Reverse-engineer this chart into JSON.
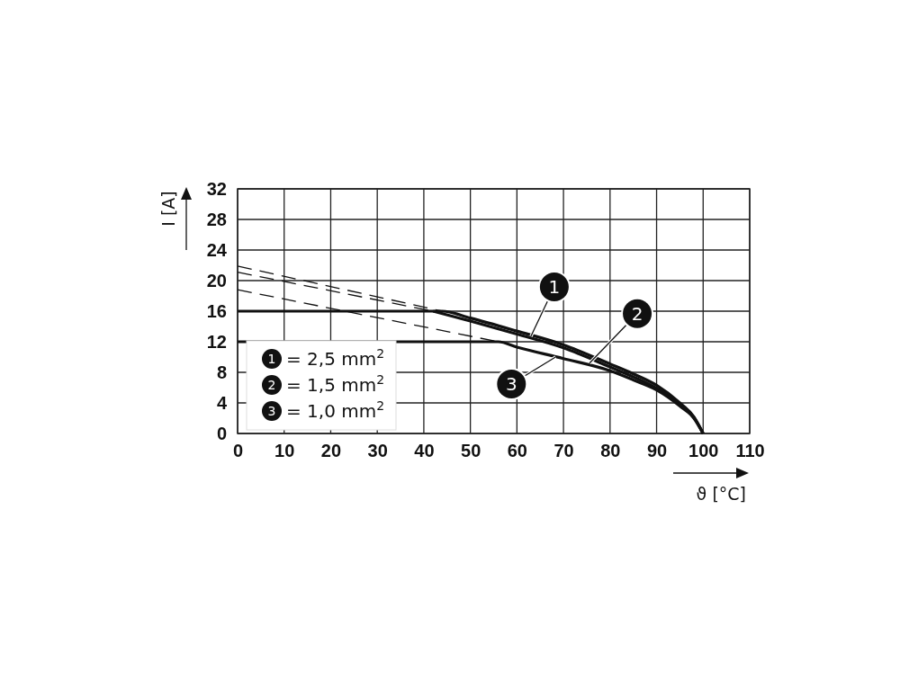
{
  "chart_data": {
    "type": "line",
    "xlabel": "ϑ [°C]",
    "ylabel": "I [A]",
    "xlim": [
      0,
      110
    ],
    "xticks": [
      0,
      10,
      20,
      30,
      40,
      50,
      60,
      70,
      80,
      90,
      100,
      110
    ],
    "ylim": [
      0,
      32
    ],
    "yticks": [
      0,
      4,
      8,
      12,
      16,
      20,
      24,
      28,
      32
    ],
    "grid": true,
    "legend": "bottom left",
    "marker": "none",
    "line_style": "solid",
    "series": [
      {
        "name": "= 2,5 mm$^{2}$",
        "color": "#111111",
        "x": [
          0,
          44,
          50,
          60,
          70,
          80,
          85,
          90,
          95,
          98,
          100
        ],
        "values": [
          16,
          16,
          15.1,
          13.4,
          11.6,
          9.1,
          7.8,
          6.3,
          4,
          2.2,
          0
        ]
      },
      {
        "name": "= 1,5 mm$^{2}$",
        "color": "#111111",
        "x": [
          42,
          50,
          60,
          70,
          80,
          85,
          90,
          95,
          98,
          100
        ],
        "values": [
          16,
          14.7,
          13,
          11.2,
          8.7,
          7.4,
          5.9,
          3.8,
          2.1,
          0
        ]
      },
      {
        "name": "= 1,0 mm$^{2}$",
        "color": "#111111",
        "x": [
          0,
          56,
          60,
          70,
          80,
          85,
          90,
          95,
          98,
          100
        ],
        "values": [
          12,
          12,
          11.3,
          9.8,
          8.2,
          7,
          5.7,
          3.6,
          2,
          0
        ]
      },
      {
        "color": "#111111",
        "line_style": "dashed",
        "x": [
          0,
          44
        ],
        "values": [
          21.9,
          16
        ]
      },
      {
        "color": "#111111",
        "line_style": "dashed",
        "x": [
          0,
          42
        ],
        "values": [
          21.1,
          16
        ]
      },
      {
        "color": "#111111",
        "line_style": "dashed",
        "x": [
          0,
          56
        ],
        "values": [
          18.8,
          12
        ]
      }
    ],
    "annotations": [
      {
        "text": "1",
        "x": 63,
        "y": 12.7
      },
      {
        "text": "2",
        "x": 75.6,
        "y": 9.2
      },
      {
        "text": "3",
        "x": 68.3,
        "y": 10
      }
    ]
  }
}
